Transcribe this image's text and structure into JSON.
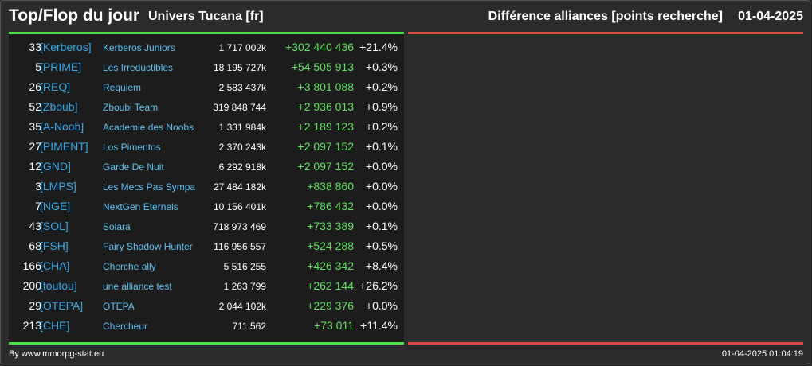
{
  "header": {
    "title": "Top/Flop du jour",
    "universe": "Univers Tucana [fr]",
    "subtitle": "Différence alliances [points recherche]",
    "date": "01-04-2025"
  },
  "colors": {
    "background": "#2b2b2b",
    "panel": "#1c1c1c",
    "top_line": "#4be34b",
    "flop_line": "#d84a44",
    "tag": "#34a7e8",
    "name": "#5cc2f2",
    "positive": "#5fe35f"
  },
  "top": [
    {
      "rank": "33",
      "tag": "[Kerberos]",
      "name": "Kerberos Juniors",
      "points": "1 717 002k",
      "diff": "+302 440 436",
      "pct": "+21.4%"
    },
    {
      "rank": "5",
      "tag": "[PRIME]",
      "name": "Les Irreductibles",
      "points": "18 195 727k",
      "diff": "+54 505 913",
      "pct": "+0.3%"
    },
    {
      "rank": "26",
      "tag": "[REQ]",
      "name": "Requiem",
      "points": "2 583 437k",
      "diff": "+3 801 088",
      "pct": "+0.2%"
    },
    {
      "rank": "52",
      "tag": "[Zboub]",
      "name": "Zboubi Team",
      "points": "319 848 744",
      "diff": "+2 936 013",
      "pct": "+0.9%"
    },
    {
      "rank": "35",
      "tag": "[A-Noob]",
      "name": "Academie des Noobs",
      "points": "1 331 984k",
      "diff": "+2 189 123",
      "pct": "+0.2%"
    },
    {
      "rank": "27",
      "tag": "[PIMENT]",
      "name": "Los Pimentos",
      "points": "2 370 243k",
      "diff": "+2 097 152",
      "pct": "+0.1%"
    },
    {
      "rank": "12",
      "tag": "[GND]",
      "name": "Garde De Nuit",
      "points": "6 292 918k",
      "diff": "+2 097 152",
      "pct": "+0.0%"
    },
    {
      "rank": "3",
      "tag": "[LMPS]",
      "name": "Les Mecs Pas Sympa",
      "points": "27 484 182k",
      "diff": "+838 860",
      "pct": "+0.0%"
    },
    {
      "rank": "7",
      "tag": "[NGE]",
      "name": "NextGen Eternels",
      "points": "10 156 401k",
      "diff": "+786 432",
      "pct": "+0.0%"
    },
    {
      "rank": "43",
      "tag": "[SOL]",
      "name": "Solara",
      "points": "718 973 469",
      "diff": "+733 389",
      "pct": "+0.1%"
    },
    {
      "rank": "68",
      "tag": "[FSH]",
      "name": "Fairy Shadow Hunter",
      "points": "116 956 557",
      "diff": "+524 288",
      "pct": "+0.5%"
    },
    {
      "rank": "166",
      "tag": "[CHA]",
      "name": "Cherche ally",
      "points": "5 516 255",
      "diff": "+426 342",
      "pct": "+8.4%"
    },
    {
      "rank": "200",
      "tag": "[toutou]",
      "name": "une alliance test",
      "points": "1 263 799",
      "diff": "+262 144",
      "pct": "+26.2%"
    },
    {
      "rank": "29",
      "tag": "[OTEPA]",
      "name": "OTEPA",
      "points": "2 044 102k",
      "diff": "+229 376",
      "pct": "+0.0%"
    },
    {
      "rank": "213",
      "tag": "[CHE]",
      "name": "Chercheur",
      "points": "711 562",
      "diff": "+73 011",
      "pct": "+11.4%"
    }
  ],
  "footer": {
    "source": "By www.mmorpg-stat.eu",
    "timestamp": "01-04-2025 01:04:19"
  }
}
